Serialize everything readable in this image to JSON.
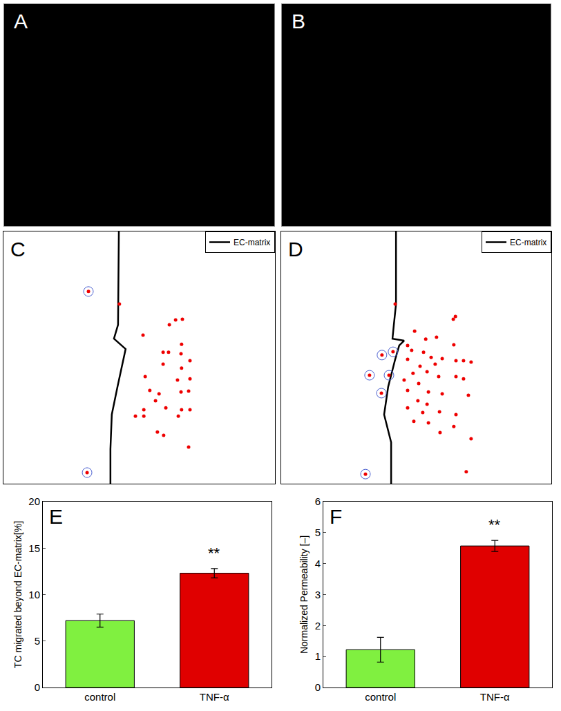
{
  "image_panels": [
    {
      "label": "A"
    },
    {
      "label": "B"
    }
  ],
  "chart_data": [
    {
      "type": "scatter",
      "title": "C",
      "xlim": [
        0,
        100
      ],
      "ylim": [
        0,
        100
      ],
      "tick_labels": false,
      "legend": "top right",
      "series": [
        {
          "name": "EC-matrix",
          "type": "line",
          "color": "#000000",
          "x": [
            42.5,
            42.2,
            40.7,
            45.0,
            42.0,
            39.9,
            39.4,
            39.4
          ],
          "y": [
            100,
            63.0,
            57.5,
            53.4,
            38.4,
            27.4,
            13.7,
            0
          ]
        },
        {
          "type": "scatter",
          "color": "#ee0000",
          "marker": "circle",
          "x": [
            31.3,
            42.7,
            30.8,
            61.1,
            63.4,
            65.9,
            51.4,
            65.6,
            58.8,
            60.8,
            65.4,
            68.7,
            58.8,
            65.6,
            52.2,
            68.7,
            64.1,
            53.9,
            57.3,
            65.4,
            68.2,
            48.6,
            51.7,
            51.7,
            56.0,
            59.8,
            65.6,
            68.7,
            64.4,
            56.7,
            59.0,
            68.2
          ],
          "y": [
            76.2,
            71.2,
            4.4,
            63.0,
            64.9,
            65.2,
            58.9,
            55.3,
            52.1,
            52.1,
            51.5,
            48.8,
            47.4,
            45.8,
            42.5,
            41.6,
            41.1,
            37.0,
            35.6,
            36.4,
            36.7,
            26.8,
            29.3,
            26.8,
            32.9,
            30.1,
            29.3,
            29.3,
            26.8,
            20.5,
            19.2,
            14.5
          ]
        },
        {
          "type": "scatter",
          "color": "#4a5fd0",
          "marker": "circle-open",
          "x": [
            31.3,
            30.8
          ],
          "y": [
            76.2,
            4.4
          ]
        }
      ]
    },
    {
      "type": "scatter",
      "title": "D",
      "xlim": [
        0,
        100
      ],
      "ylim": [
        0,
        100
      ],
      "tick_labels": false,
      "legend": "top right",
      "series": [
        {
          "name": "EC-matrix",
          "type": "line",
          "color": "#000000",
          "x": [
            42.5,
            42.5,
            41.7,
            41.2,
            45.5,
            43.7,
            42.2,
            39.6,
            38.1,
            40.7,
            40.7
          ],
          "y": [
            100,
            71.2,
            63.0,
            57.5,
            56.7,
            54.8,
            49.3,
            38.4,
            27.4,
            16.4,
            0
          ]
        },
        {
          "type": "scatter",
          "color": "#ee0000",
          "marker": "circle",
          "x": [
            42.2,
            37.3,
            41.4,
            32.7,
            39.9,
            37.1,
            31.2,
            63.7,
            64.5,
            49.4,
            53.5,
            57.5,
            63.9,
            46.8,
            48.3,
            52.7,
            55.5,
            59.6,
            64.7,
            67.5,
            70.3,
            46.8,
            51.4,
            57.0,
            48.8,
            54.0,
            45.5,
            50.9,
            58.3,
            64.7,
            67.5,
            46.8,
            54.5,
            59.6,
            69.3,
            50.6,
            54.0,
            46.8,
            52.4,
            58.6,
            64.7,
            49.1,
            54.5,
            58.8,
            63.9,
            70.3,
            68.5
          ],
          "y": [
            71.2,
            51.0,
            52.3,
            43.0,
            43.0,
            35.9,
            3.8,
            65.2,
            66.3,
            60.5,
            57.3,
            58.1,
            55.1,
            54.8,
            52.9,
            52.1,
            50.1,
            49.6,
            48.8,
            48.8,
            48.2,
            49.3,
            46.6,
            47.4,
            43.8,
            44.4,
            41.1,
            39.7,
            42.5,
            42.5,
            41.6,
            37.0,
            36.4,
            35.6,
            35.1,
            32.9,
            31.5,
            30.1,
            28.2,
            28.5,
            27.4,
            24.7,
            24.1,
            20.3,
            22.7,
            17.8,
            4.7
          ]
        },
        {
          "type": "scatter",
          "color": "#4a5fd0",
          "marker": "circle-open",
          "x": [
            37.3,
            41.4,
            32.7,
            39.9,
            37.1,
            31.2
          ],
          "y": [
            51.0,
            52.3,
            43.0,
            43.0,
            35.9,
            3.8
          ]
        }
      ]
    },
    {
      "type": "bar",
      "title": "E",
      "categories": [
        "control",
        "TNF-α"
      ],
      "values": [
        7.2,
        12.3
      ],
      "errors": [
        0.7,
        0.5
      ],
      "colors": [
        "#80f040",
        "#e00000"
      ],
      "ylabel": "TC migrated beyond EC-matrix[%]",
      "ylim": [
        0,
        20
      ],
      "yticks": [
        0,
        5,
        10,
        15,
        20
      ],
      "annotations": [
        {
          "category": "TNF-α",
          "text": "**"
        }
      ]
    },
    {
      "type": "bar",
      "title": "F",
      "categories": [
        "control",
        "TNF-α"
      ],
      "values": [
        1.22,
        4.57
      ],
      "errors": [
        0.4,
        0.18
      ],
      "colors": [
        "#80f040",
        "#e00000"
      ],
      "ylabel": "Normalized Permeability [–]",
      "ylim": [
        0,
        6
      ],
      "yticks": [
        0,
        1,
        2,
        3,
        4,
        5,
        6
      ],
      "annotations": [
        {
          "category": "TNF-α",
          "text": "**"
        }
      ]
    }
  ]
}
